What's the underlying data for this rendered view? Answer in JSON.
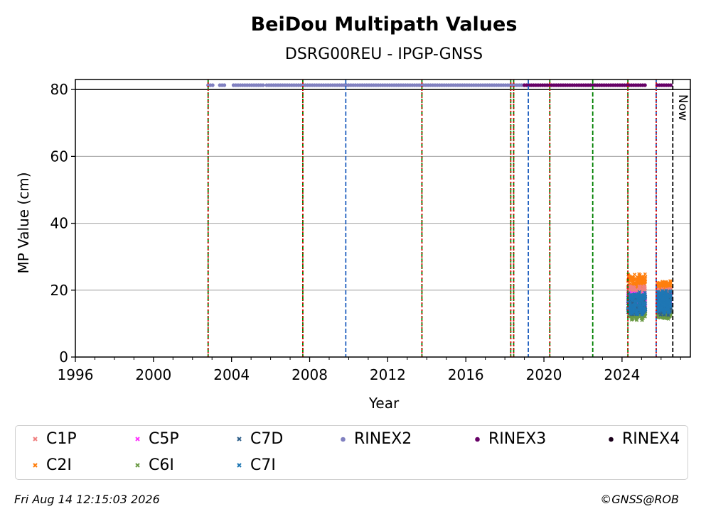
{
  "chart_data": {
    "type": "scatter",
    "title": "BeiDou Multipath Values",
    "subtitle": "DSRG00REU - IPGP-GNSS",
    "xlabel": "Year",
    "ylabel": "MP Value (cm)",
    "xlim": [
      1996,
      2027.5
    ],
    "ylim": [
      0,
      83
    ],
    "x_ticks": [
      "1996",
      "2000",
      "2004",
      "2008",
      "2012",
      "2016",
      "2020",
      "2024"
    ],
    "x_tick_values": [
      1996,
      2000,
      2004,
      2008,
      2012,
      2016,
      2020,
      2024
    ],
    "y_ticks": [
      "0",
      "20",
      "40",
      "60",
      "80"
    ],
    "y_tick_values": [
      0,
      20,
      40,
      60,
      80
    ],
    "grid": "y",
    "reference_line_y": 80,
    "now_label": "Now",
    "now_x": 2026.6,
    "series": [
      {
        "name": "C1P",
        "color": "#f08080",
        "marker": "x",
        "segments": [
          {
            "x": [
              2024.3,
              2025.2
            ],
            "y_center": 18.5,
            "spread": 2.5
          },
          {
            "x": [
              2025.8,
              2026.5
            ],
            "y_center": 17.5,
            "spread": 2.5
          }
        ]
      },
      {
        "name": "C2I",
        "color": "#ff7f0e",
        "marker": "x",
        "segments": [
          {
            "x": [
              2024.3,
              2025.2
            ],
            "y_center": 22,
            "spread": 2.5
          },
          {
            "x": [
              2025.8,
              2026.5
            ],
            "y_center": 20.5,
            "spread": 1.8
          }
        ]
      },
      {
        "name": "C5P",
        "color": "#ff33ff",
        "marker": "x",
        "segments": [
          {
            "x": [
              2024.3,
              2025.2
            ],
            "y_center": 17,
            "spread": 2
          },
          {
            "x": [
              2025.8,
              2026.5
            ],
            "y_center": 16.5,
            "spread": 2
          }
        ]
      },
      {
        "name": "C6I",
        "color": "#6b9a45",
        "marker": "x",
        "segments": [
          {
            "x": [
              2024.3,
              2025.2
            ],
            "y_center": 13,
            "spread": 1.5
          },
          {
            "x": [
              2025.8,
              2026.5
            ],
            "y_center": 13,
            "spread": 1.2
          }
        ]
      },
      {
        "name": "C7D",
        "color": "#2f5f8a",
        "marker": "x",
        "segments": [
          {
            "x": [
              2024.3,
              2025.2
            ],
            "y_center": 15.5,
            "spread": 2.5
          },
          {
            "x": [
              2025.8,
              2026.5
            ],
            "y_center": 16,
            "spread": 3
          }
        ]
      },
      {
        "name": "C7I",
        "color": "#1f77b4",
        "marker": "x",
        "segments": [
          {
            "x": [
              2024.3,
              2025.2
            ],
            "y_center": 16,
            "spread": 3
          },
          {
            "x": [
              2025.8,
              2026.5
            ],
            "y_center": 16.5,
            "spread": 3
          }
        ]
      },
      {
        "name": "RINEX2",
        "color": "#8080c0",
        "marker": "o",
        "y": 81.3,
        "ranges": [
          [
            2002.8,
            2003.1
          ],
          [
            2003.4,
            2003.7
          ],
          [
            2004.1,
            2005.7
          ],
          [
            2005.8,
            2019.0
          ]
        ]
      },
      {
        "name": "RINEX3",
        "color": "#660066",
        "marker": "o",
        "y": 81.3,
        "ranges": [
          [
            2019.0,
            2025.2
          ],
          [
            2025.8,
            2026.6
          ]
        ]
      },
      {
        "name": "RINEX4",
        "color": "#1a001a",
        "marker": "o",
        "y": 81.3,
        "ranges": []
      }
    ],
    "vertical_lines": [
      {
        "x": 2002.8,
        "style": "green-red"
      },
      {
        "x": 2007.65,
        "style": "green-red"
      },
      {
        "x": 2009.85,
        "style": "blue"
      },
      {
        "x": 2013.75,
        "style": "green-red"
      },
      {
        "x": 2018.3,
        "style": "green-red"
      },
      {
        "x": 2018.45,
        "style": "green-red"
      },
      {
        "x": 2019.2,
        "style": "blue"
      },
      {
        "x": 2020.3,
        "style": "green-red"
      },
      {
        "x": 2022.5,
        "style": "green"
      },
      {
        "x": 2024.3,
        "style": "green-red"
      },
      {
        "x": 2025.75,
        "style": "blue-red"
      },
      {
        "x": 2026.6,
        "style": "black"
      }
    ],
    "legend_location": "bottom"
  },
  "legend": {
    "items": [
      {
        "label": "C1P",
        "color": "#f08080",
        "marker": "x"
      },
      {
        "label": "C5P",
        "color": "#ff33ff",
        "marker": "x"
      },
      {
        "label": "C7D",
        "color": "#2f5f8a",
        "marker": "x"
      },
      {
        "label": "RINEX2",
        "color": "#8080c0",
        "marker": "o"
      },
      {
        "label": "RINEX3",
        "color": "#660066",
        "marker": "o"
      },
      {
        "label": "RINEX4",
        "color": "#1a001a",
        "marker": "o"
      },
      {
        "label": "C2I",
        "color": "#ff7f0e",
        "marker": "x"
      },
      {
        "label": "C6I",
        "color": "#6b9a45",
        "marker": "x"
      },
      {
        "label": "C7I",
        "color": "#1f77b4",
        "marker": "x"
      }
    ]
  },
  "footer": {
    "date": "Fri Aug 14 12:15:03 2026",
    "copyright": "©GNSS@ROB"
  }
}
